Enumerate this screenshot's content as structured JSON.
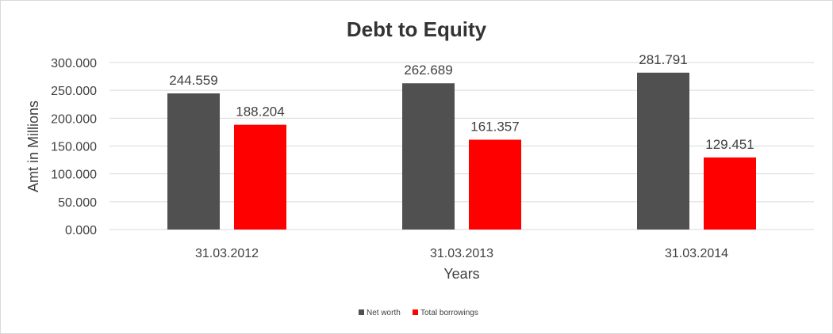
{
  "chart_data": {
    "type": "bar",
    "title": "Debt to Equity",
    "xlabel": "Years",
    "ylabel": "Amt in Millions",
    "categories": [
      "31.03.2012",
      "31.03.2013",
      "31.03.2014"
    ],
    "series": [
      {
        "name": "Net worth",
        "color": "#505050",
        "values": [
          244.559,
          262.689,
          281.791
        ],
        "labels": [
          "244.559",
          "262.689",
          "281.791"
        ]
      },
      {
        "name": "Total borrowings",
        "color": "#ff0000",
        "values": [
          188.204,
          161.357,
          129.451
        ],
        "labels": [
          "188.204",
          "161.357",
          "129.451"
        ]
      }
    ],
    "ylim": [
      0,
      300
    ],
    "yticks": [
      0,
      50,
      100,
      150,
      200,
      250,
      300
    ],
    "ytick_labels": [
      "0.000",
      "50.000",
      "100.000",
      "150.000",
      "200.000",
      "250.000",
      "300.000"
    ],
    "grid": true,
    "legend": "bottom"
  }
}
